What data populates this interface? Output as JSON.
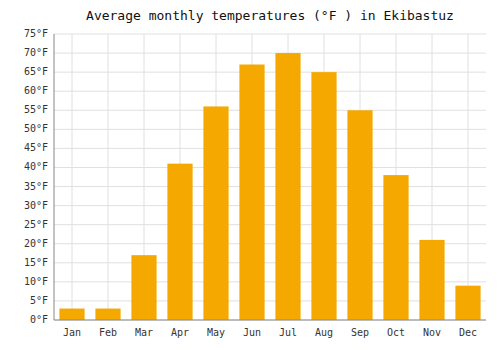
{
  "chart_data": {
    "type": "bar",
    "title": "Average monthly temperatures (°F ) in Ekibastuz",
    "categories": [
      "Jan",
      "Feb",
      "Mar",
      "Apr",
      "May",
      "Jun",
      "Jul",
      "Aug",
      "Sep",
      "Oct",
      "Nov",
      "Dec"
    ],
    "values": [
      3,
      3,
      17,
      41,
      56,
      67,
      70,
      65,
      55,
      38,
      21,
      9
    ],
    "color": "#F5A800",
    "ylim": [
      0,
      75
    ],
    "yticks": [
      {
        "value": 0,
        "label": "0°F"
      },
      {
        "value": 5,
        "label": "5°F"
      },
      {
        "value": 10,
        "label": "10°F"
      },
      {
        "value": 15,
        "label": "15°F"
      },
      {
        "value": 20,
        "label": "20°F"
      },
      {
        "value": 25,
        "label": "25°F"
      },
      {
        "value": 30,
        "label": "30°F"
      },
      {
        "value": 35,
        "label": "35°F"
      },
      {
        "value": 40,
        "label": "40°F"
      },
      {
        "value": 45,
        "label": "45°F"
      },
      {
        "value": 50,
        "label": "50°F"
      },
      {
        "value": 55,
        "label": "55°F"
      },
      {
        "value": 60,
        "label": "60°F"
      },
      {
        "value": 65,
        "label": "65°F"
      },
      {
        "value": 70,
        "label": "70°F"
      },
      {
        "value": 75,
        "label": "75°F"
      }
    ],
    "grid": true
  }
}
